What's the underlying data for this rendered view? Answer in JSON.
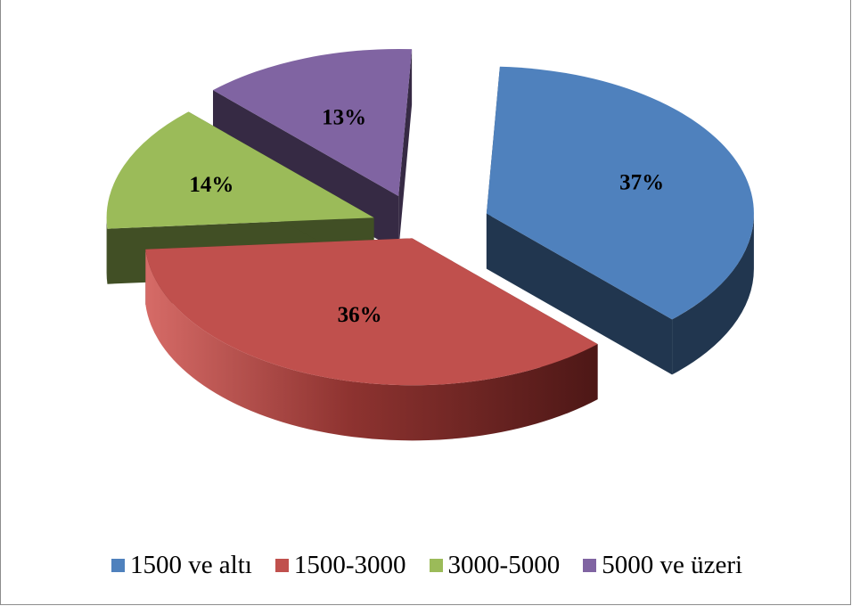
{
  "chart_data": {
    "type": "pie",
    "three_d": true,
    "exploded": true,
    "categories": [
      "1500 ve altı",
      "1500-3000",
      "3000-5000",
      "5000 ve üzeri"
    ],
    "values": [
      37,
      36,
      14,
      13
    ],
    "data_labels": [
      "37%",
      "36%",
      "14%",
      "13%"
    ],
    "colors": [
      "#4F81BD",
      "#C0504D",
      "#9BBB59",
      "#8064A2"
    ],
    "legend_position": "bottom",
    "title": ""
  }
}
